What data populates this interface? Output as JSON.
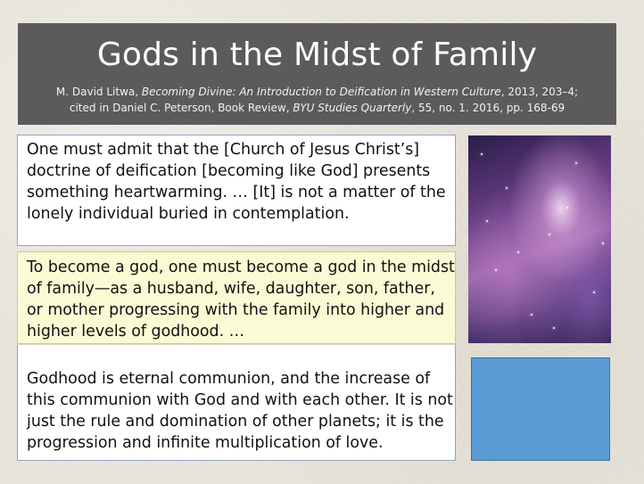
{
  "slide": {
    "title": "Gods in the Midst of Family",
    "citation": {
      "line1_prefix": "M. David Litwa, ",
      "line1_italic": "Becoming Divine: An Introduction to Deification in Western Culture",
      "line1_suffix": ", 2013, 203–4;",
      "line2_prefix": "cited in Daniel C. Peterson, Book Review, ",
      "line2_italic": "BYU Studies Quarterly",
      "line2_suffix": ", 55, no. 1. 2016, pp. 168-69"
    },
    "paragraphs": [
      "One must admit that the [Church of Jesus Christ’s] doctrine of deification [becoming like God] presents something heartwarming. … [It] is not a matter of the lonely individual buried in contemplation.",
      "To become a god, one must become a god in the midst of family—as a husband, wife, daughter, son, father, or mother progressing with the family into higher and higher levels of godhood. …",
      "Godhood is eternal communion, and the increase of this communion with God and with each other. It is not just the rule and domination of other planets; it is the progression and infinite multiplication of love."
    ],
    "colors": {
      "title_bar": "#5b5b5b",
      "highlight": "#fafbd4",
      "blue_box": "#5b9bd5"
    }
  }
}
